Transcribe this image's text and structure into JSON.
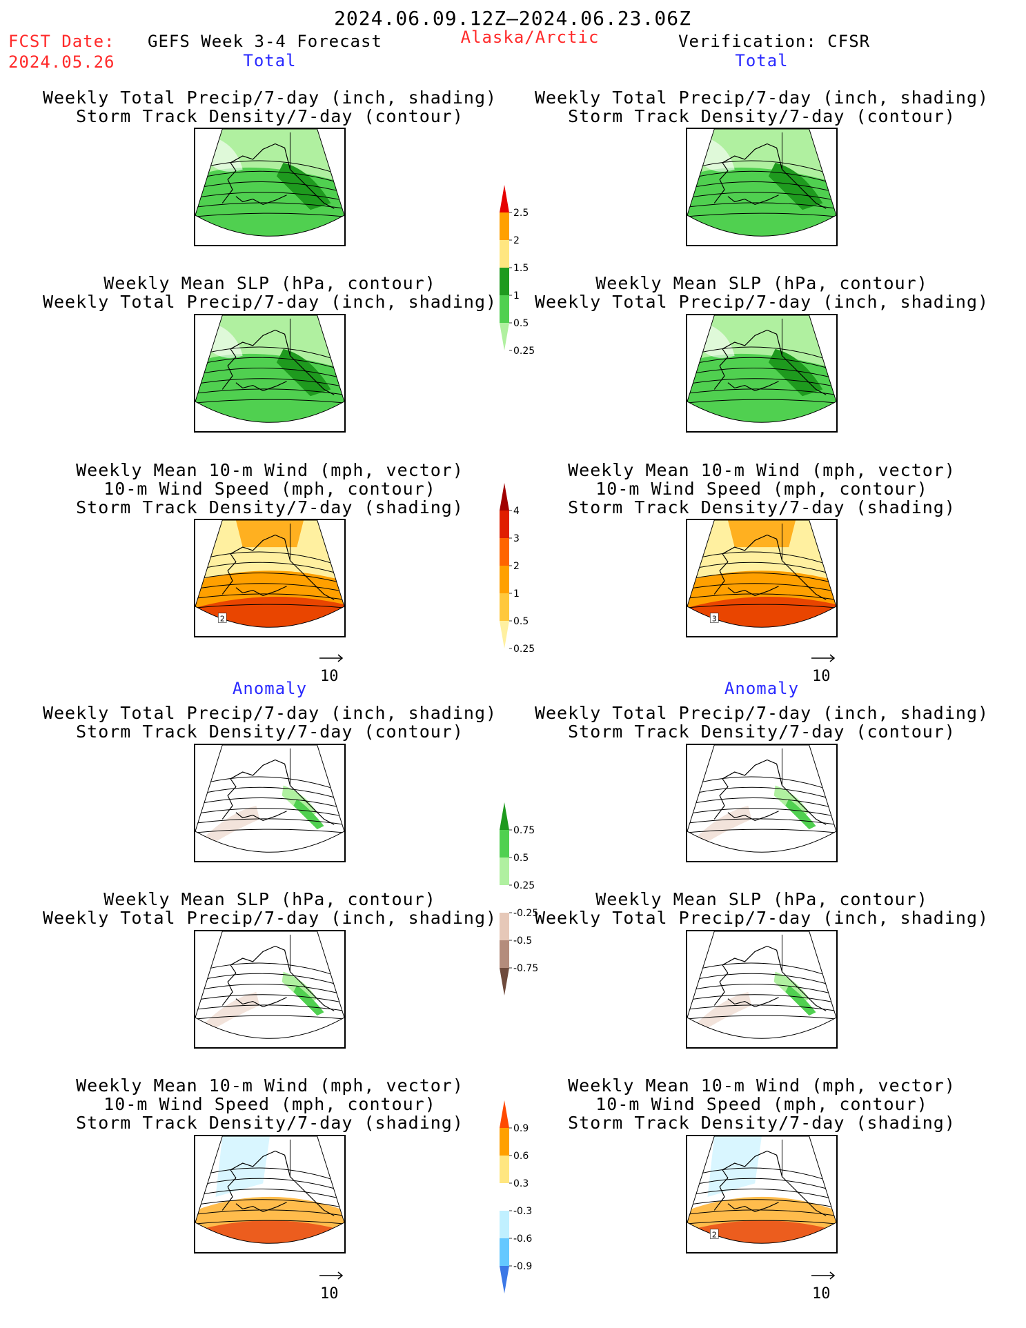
{
  "header": {
    "date_range": "2024.06.09.12Z–2024.06.23.06Z",
    "fcst_label": "FCST Date:",
    "fcst_date": "2024.05.26",
    "model": "GEFS Week 3-4 Forecast",
    "region": "Alaska/Arctic",
    "verification": "Verification: CFSR"
  },
  "sections": {
    "total_left": "Total",
    "total_right": "Total",
    "anomaly_left": "Anomaly",
    "anomaly_right": "Anomaly"
  },
  "titles": {
    "precip_track": [
      "Weekly Total Precip/7-day (inch, shading)",
      "Storm Track Density/7-day (contour)"
    ],
    "slp_precip": [
      "Weekly Mean SLP (hPa, contour)",
      "Weekly Total Precip/7-day (inch, shading)"
    ],
    "wind_track": [
      "Weekly Mean 10-m Wind (mph, vector)",
      "10-m Wind Speed (mph, contour)",
      "Storm Track Density/7-day (shading)"
    ]
  },
  "panels": [
    {
      "id": "total-fcst-precip",
      "row": 1,
      "col": "left",
      "title_key": "precip_track",
      "shading": "precip",
      "contour_labels": []
    },
    {
      "id": "total-ver-precip",
      "row": 1,
      "col": "right",
      "title_key": "precip_track",
      "shading": "precip",
      "contour_labels": []
    },
    {
      "id": "total-fcst-slp",
      "row": 2,
      "col": "left",
      "title_key": "slp_precip",
      "shading": "precip",
      "contour_labels": []
    },
    {
      "id": "total-ver-slp",
      "row": 2,
      "col": "right",
      "title_key": "slp_precip",
      "shading": "precip",
      "contour_labels": []
    },
    {
      "id": "total-fcst-wind",
      "row": 3,
      "col": "left",
      "title_key": "wind_track",
      "shading": "track",
      "contour_labels": [
        "2"
      ]
    },
    {
      "id": "total-ver-wind",
      "row": 3,
      "col": "right",
      "title_key": "wind_track",
      "shading": "track",
      "contour_labels": [
        "3"
      ]
    },
    {
      "id": "anom-fcst-precip",
      "row": 4,
      "col": "left",
      "title_key": "precip_track",
      "shading": "precip-anom",
      "contour_labels": []
    },
    {
      "id": "anom-ver-precip",
      "row": 4,
      "col": "right",
      "title_key": "precip_track",
      "shading": "precip-anom",
      "contour_labels": []
    },
    {
      "id": "anom-fcst-slp",
      "row": 5,
      "col": "left",
      "title_key": "slp_precip",
      "shading": "precip-anom",
      "contour_labels": []
    },
    {
      "id": "anom-ver-slp",
      "row": 5,
      "col": "right",
      "title_key": "slp_precip",
      "shading": "precip-anom",
      "contour_labels": []
    },
    {
      "id": "anom-fcst-wind",
      "row": 6,
      "col": "left",
      "title_key": "wind_track",
      "shading": "track-anom",
      "contour_labels": []
    },
    {
      "id": "anom-ver-wind",
      "row": 6,
      "col": "right",
      "title_key": "wind_track",
      "shading": "track-anom",
      "contour_labels": [
        "2"
      ]
    }
  ],
  "colorbars": {
    "precip_total": {
      "labels": [
        "2.5",
        "2",
        "1.5",
        "1",
        "0.5",
        "0.25"
      ],
      "colors": [
        "#e60000",
        "#ffa000",
        "#ffe680",
        "#1e9a1e",
        "#50d050",
        "#b0f0a0"
      ]
    },
    "track_total": {
      "labels": [
        "4",
        "3",
        "2",
        "1",
        "0.5",
        "0.25"
      ],
      "colors": [
        "#a00000",
        "#e01e00",
        "#ff6400",
        "#ffa000",
        "#ffc83c",
        "#fff0a0"
      ]
    },
    "precip_anom": {
      "labels": [
        "0.75",
        "0.5",
        "0.25",
        "-0.25",
        "-0.5",
        "-0.75"
      ],
      "colors": [
        "#1e9a1e",
        "#50d050",
        "#b0f0a0",
        "#ffffff",
        "#e6c8b8",
        "#b48c7c",
        "#6e4a3c"
      ]
    },
    "track_anom": {
      "labels": [
        "0.9",
        "0.6",
        "0.3",
        "-0.3",
        "-0.6",
        "-0.9"
      ],
      "colors": [
        "#ff4a00",
        "#ffa000",
        "#ffe680",
        "#ffffff",
        "#c0f0ff",
        "#64c8ff",
        "#3c78e6"
      ]
    }
  },
  "vector_reference": "10",
  "map_colors": {
    "precip_green": "#50d050",
    "precip_light": "#b0f0a0",
    "precip_dark": "#1e9a1e",
    "anom_brown": "#e6c8b8",
    "track_orange": "#ffa000",
    "track_red": "#e01e00",
    "track_blue": "#3c78e6",
    "vector_blue": "#5050ff"
  }
}
